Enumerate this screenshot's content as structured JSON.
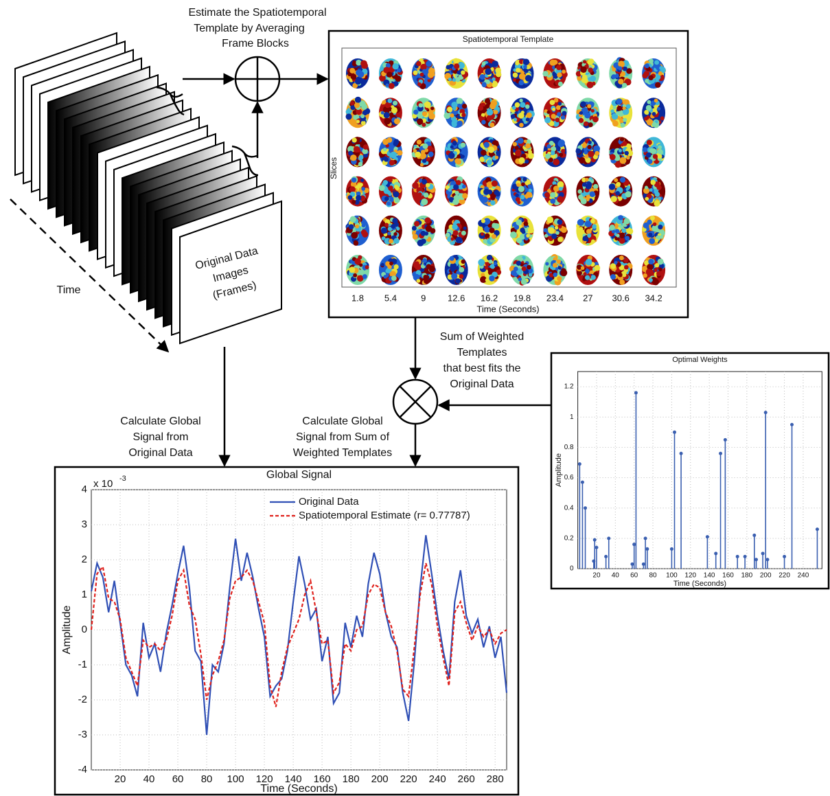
{
  "flow": {
    "estimate_label": [
      "Estimate the Spatiotemporal",
      "Template by Averaging",
      "Frame Blocks"
    ],
    "frames_label": [
      "Original Data",
      "Images",
      "(Frames)"
    ],
    "time_label": "Time",
    "sum_label": [
      "Sum of Weighted",
      "Templates",
      "that best fits the",
      "Original Data"
    ],
    "calc_original_label": [
      "Calculate Global",
      "Signal from",
      "Original Data"
    ],
    "calc_template_label": [
      "Calculate Global",
      "Signal from Sum of",
      "Weighted Templates"
    ]
  },
  "template": {
    "title": "Spatiotemporal Template",
    "ylabel": "Slices",
    "xlabel": "Time (Seconds)",
    "xticks": [
      1.8,
      5.4,
      9,
      12.6,
      16.2,
      19.8,
      23.4,
      27,
      30.6,
      34.2
    ]
  },
  "global_signal": {
    "type": "line",
    "title": "Global Signal",
    "y_multiplier": "x 10",
    "y_multiplier_exp": "-3",
    "xlabel": "Time (Seconds)",
    "ylabel": "Amplitude",
    "xlim": [
      0,
      288
    ],
    "ylim": [
      -4,
      4
    ],
    "xticks": [
      20,
      40,
      60,
      80,
      100,
      120,
      140,
      160,
      180,
      200,
      220,
      240,
      260,
      280
    ],
    "yticks": [
      -4,
      -3,
      -2,
      -1,
      0,
      1,
      2,
      3,
      4
    ],
    "grid": true,
    "x": [
      0,
      4,
      8,
      12,
      16,
      20,
      24,
      28,
      32,
      36,
      40,
      44,
      48,
      52,
      56,
      60,
      64,
      68,
      72,
      76,
      80,
      84,
      88,
      92,
      96,
      100,
      104,
      108,
      112,
      116,
      120,
      124,
      128,
      132,
      136,
      140,
      144,
      148,
      152,
      156,
      160,
      164,
      168,
      172,
      176,
      180,
      184,
      188,
      192,
      196,
      200,
      204,
      208,
      212,
      216,
      220,
      224,
      228,
      232,
      236,
      240,
      244,
      248,
      252,
      256,
      260,
      264,
      268,
      272,
      276,
      280,
      284,
      288
    ],
    "series": [
      {
        "name": "Original Data",
        "color": "#2f4fb5",
        "dash": false,
        "values": [
          1.1,
          1.9,
          1.5,
          0.5,
          1.4,
          0.2,
          -1.0,
          -1.3,
          -1.9,
          0.2,
          -0.8,
          -0.4,
          -1.2,
          -0.1,
          0.7,
          1.6,
          2.4,
          1.2,
          -0.6,
          -0.9,
          -3.0,
          -1.0,
          -1.2,
          -0.4,
          1.2,
          2.6,
          1.4,
          2.2,
          1.5,
          0.6,
          -0.2,
          -1.9,
          -1.6,
          -1.4,
          -0.6,
          0.8,
          2.1,
          1.3,
          0.3,
          0.6,
          -0.9,
          -0.2,
          -2.1,
          -1.8,
          0.2,
          -0.5,
          0.4,
          -0.2,
          1.3,
          2.2,
          1.6,
          0.5,
          -0.2,
          -0.5,
          -1.8,
          -2.6,
          -0.9,
          1.2,
          2.7,
          1.6,
          0.4,
          -0.6,
          -1.4,
          0.8,
          1.7,
          0.4,
          -0.1,
          0.3,
          -0.5,
          0.1,
          -0.8,
          -0.2,
          -1.8
        ]
      },
      {
        "name": "Spatiotemporal Estimate (r= 0.77787)",
        "color": "#e0201b",
        "dash": true,
        "values": [
          0.0,
          1.6,
          1.8,
          0.9,
          0.8,
          0.3,
          -0.8,
          -1.2,
          -1.6,
          -0.3,
          -0.5,
          -0.4,
          -0.6,
          -0.3,
          0.4,
          1.4,
          1.7,
          0.7,
          0.3,
          -0.7,
          -2.0,
          -1.3,
          -0.9,
          -0.3,
          0.9,
          1.4,
          1.5,
          1.7,
          1.4,
          0.8,
          0.2,
          -1.6,
          -2.2,
          -1.2,
          -0.5,
          -0.1,
          0.3,
          1.0,
          1.4,
          0.5,
          -0.4,
          -0.3,
          -1.8,
          -1.5,
          -0.4,
          -0.6,
          0.0,
          0.1,
          1.0,
          1.3,
          1.2,
          0.5,
          0.1,
          -0.6,
          -1.7,
          -1.9,
          -0.5,
          1.0,
          1.9,
          1.3,
          0.1,
          -0.8,
          -1.6,
          0.5,
          0.8,
          0.2,
          -0.3,
          0.1,
          -0.2,
          0.0,
          -0.4,
          -0.1,
          0.0
        ]
      }
    ]
  },
  "optimal_weights": {
    "type": "stem",
    "title": "Optimal Weights",
    "xlabel": "Time (Seconds)",
    "ylabel": "Amplitude",
    "xlim": [
      0,
      260
    ],
    "ylim": [
      0,
      1.3
    ],
    "xticks": [
      20,
      40,
      60,
      80,
      100,
      120,
      140,
      160,
      180,
      200,
      220,
      240
    ],
    "yticks": [
      0,
      0.2,
      0.4,
      0.6,
      0.8,
      1,
      1.2
    ],
    "grid": true,
    "color": "#3a5fb0",
    "x": [
      2,
      5,
      8,
      17,
      18,
      20,
      30,
      33,
      58,
      60,
      62,
      70,
      72,
      74,
      100,
      103,
      110,
      138,
      147,
      152,
      157,
      170,
      178,
      188,
      190,
      197,
      200,
      202,
      220,
      228,
      255
    ],
    "values": [
      0.69,
      0.57,
      0.4,
      0.05,
      0.19,
      0.14,
      0.08,
      0.2,
      0.03,
      0.16,
      1.16,
      0.03,
      0.2,
      0.13,
      0.13,
      0.9,
      0.76,
      0.21,
      0.1,
      0.76,
      0.85,
      0.08,
      0.08,
      0.22,
      0.06,
      0.1,
      1.03,
      0.06,
      0.08,
      0.95,
      0.26
    ]
  }
}
